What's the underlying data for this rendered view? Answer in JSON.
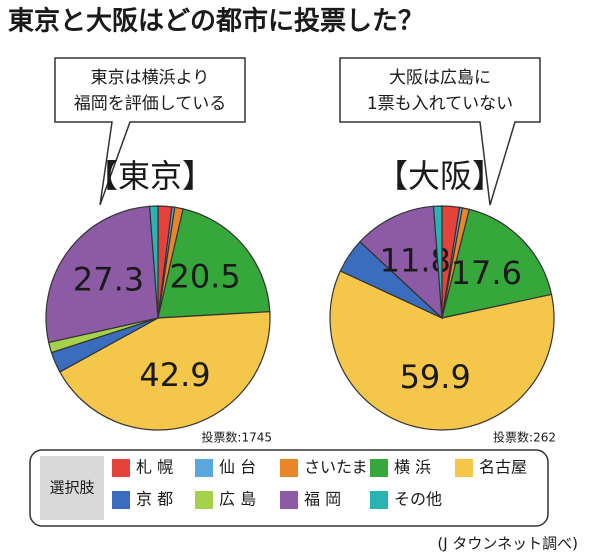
{
  "title": "東京と大阪はどの都市に投票した？",
  "legend_title": "選択肢",
  "source": "(J タウンネット調べ)",
  "chart_data": [
    {
      "type": "pie",
      "title": "【東京】",
      "callout": [
        "東京は横浜より",
        "福岡を評価している"
      ],
      "votes": "投票数:1745",
      "categories": [
        "札 幌",
        "仙 台",
        "さいたま",
        "横 浜",
        "名古屋",
        "京 都",
        "広 島",
        "福 岡",
        "その他"
      ],
      "colors": [
        "#e5433a",
        "#5aa7e0",
        "#e8862a",
        "#36a83b",
        "#f4c64a",
        "#3a6dbd",
        "#a6d14a",
        "#8d5aa6",
        "#2ab3b3"
      ],
      "values": [
        2.0,
        0.4,
        1.2,
        20.5,
        42.9,
        3.0,
        1.5,
        27.3,
        1.2
      ],
      "value_labels": [
        null,
        null,
        null,
        "20.5",
        "42.9",
        null,
        null,
        "27.3",
        null
      ]
    },
    {
      "type": "pie",
      "title": "【大阪】",
      "callout": [
        "大阪は広島に",
        "1票も入れていない"
      ],
      "votes": "投票数:262",
      "categories": [
        "札 幌",
        "仙 台",
        "さいたま",
        "横 浜",
        "名古屋",
        "京 都",
        "広 島",
        "福 岡",
        "その他"
      ],
      "colors": [
        "#e5433a",
        "#5aa7e0",
        "#e8862a",
        "#36a83b",
        "#f4c64a",
        "#3a6dbd",
        "#a6d14a",
        "#8d5aa6",
        "#2ab3b3"
      ],
      "values": [
        2.5,
        0.4,
        1.0,
        17.6,
        59.9,
        5.0,
        0,
        11.8,
        1.2
      ],
      "value_labels": [
        null,
        null,
        null,
        "17.6",
        "59.9",
        null,
        null,
        "11.8",
        null
      ]
    }
  ]
}
